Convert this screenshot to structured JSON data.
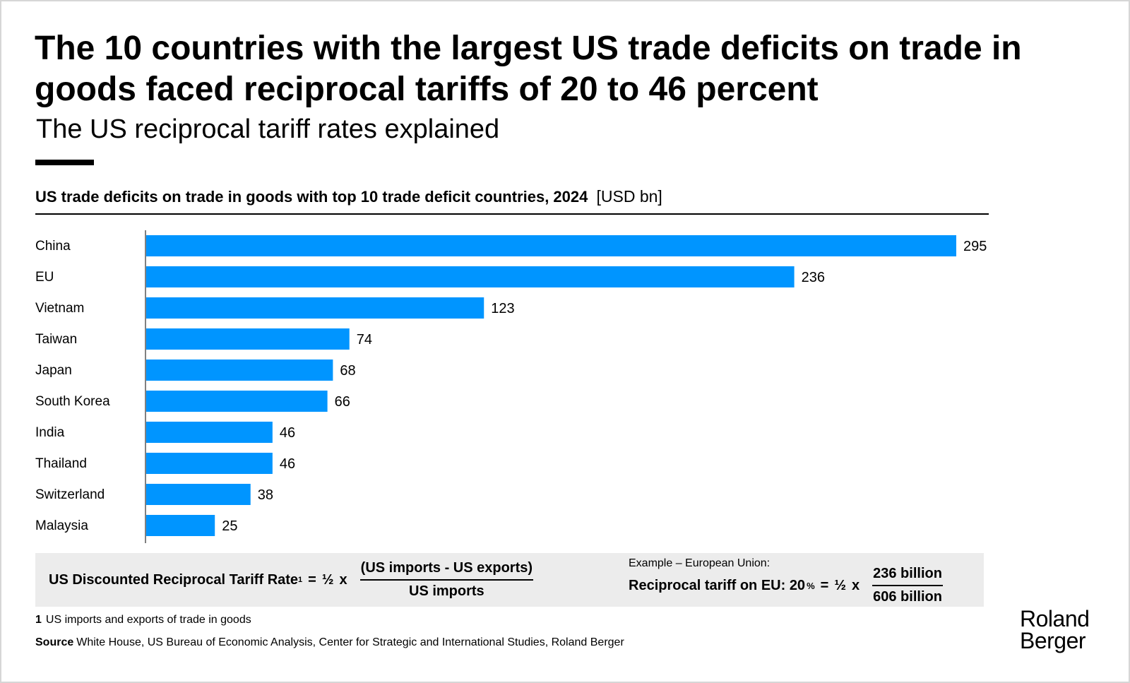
{
  "title": "The 10 countries with the largest US trade deficits on trade in goods faced reciprocal tariffs of 20 to 46 percent",
  "subtitle": "The US reciprocal tariff rates explained",
  "colors": {
    "bar": "#0095FF",
    "text": "#000000",
    "formula_bg": "#ECECEC"
  },
  "chart_data": {
    "type": "bar",
    "orientation": "horizontal",
    "title": "US trade deficits on trade in goods with top 10 trade deficit countries, 2024",
    "unit": "[USD bn]",
    "categories": [
      "China",
      "EU",
      "Vietnam",
      "Taiwan",
      "Japan",
      "South Korea",
      "India",
      "Thailand",
      "Switzerland",
      "Malaysia"
    ],
    "values": [
      295,
      236,
      123,
      74,
      68,
      66,
      46,
      46,
      38,
      25
    ],
    "xlim": [
      0,
      295
    ],
    "grid": false,
    "data_labels": true
  },
  "formula": {
    "label": "US Discounted Reciprocal Tariff Rate",
    "footnote_mark": "1",
    "equals": "=",
    "half": "½",
    "times": "x",
    "numerator": "(US imports - US exports)",
    "denominator": "US imports"
  },
  "example": {
    "label": "Example – European Union:",
    "lhs": "Reciprocal tariff on EU: 20",
    "pct": "%",
    "equals": "=",
    "half": "½",
    "times": "x",
    "numerator": "236 billion",
    "denominator": "606 billion"
  },
  "footnote": {
    "number": "1",
    "text": "US imports and exports of trade in goods"
  },
  "source": {
    "label": "Source",
    "text": "White House, US Bureau of Economic Analysis, Center for Strategic and International Studies, Roland Berger"
  },
  "logo": {
    "line1": "Roland",
    "line2": "Berger"
  }
}
